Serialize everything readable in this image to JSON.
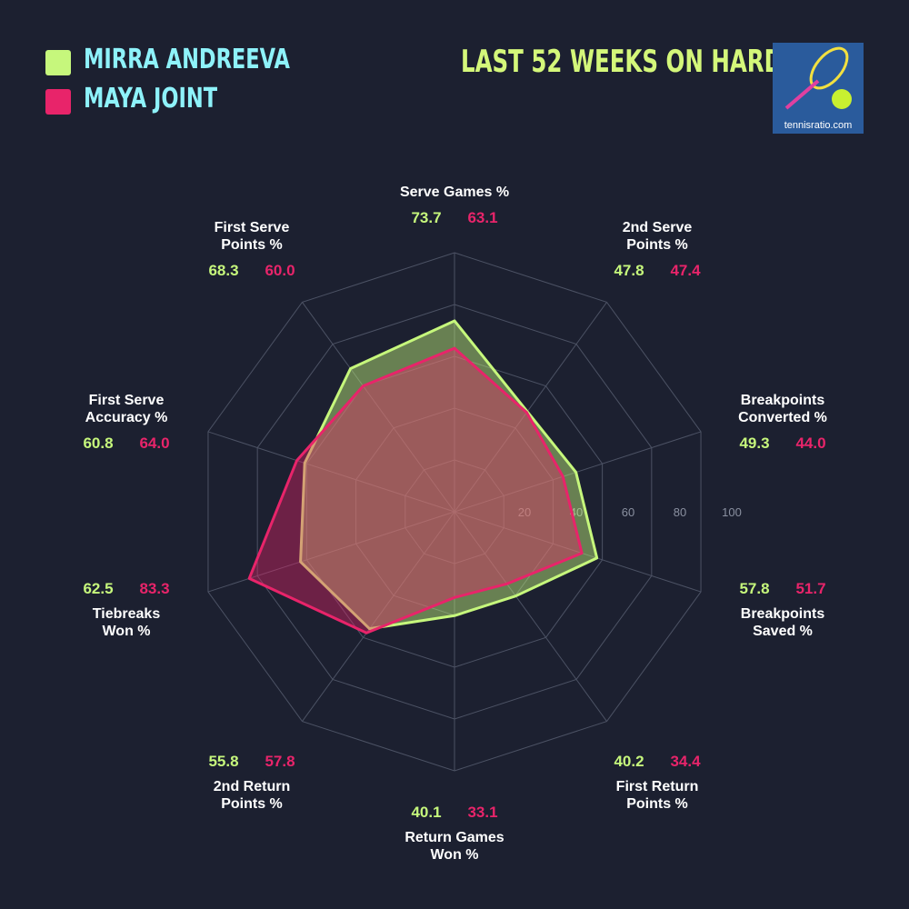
{
  "chart_data": {
    "type": "radar",
    "title": "LAST 52 WEEKS ON HARD",
    "logo_text": "tennisratio.com",
    "categories": [
      "Serve Games %",
      "2nd Serve\nPoints %",
      "Breakpoints\nConverted %",
      "Breakpoints\nSaved %",
      "First Return\nPoints %",
      "Return Games\nWon %",
      "2nd Return\nPoints %",
      "Tiebreaks\nWon %",
      "First Serve\nAccuracy %",
      "First Serve\nPoints %"
    ],
    "series": [
      {
        "name": "MIRRA ANDREEVA",
        "color": "#c6f77c",
        "values": [
          73.7,
          47.8,
          49.3,
          57.8,
          40.2,
          40.1,
          55.8,
          62.5,
          60.8,
          68.3
        ],
        "value_labels": [
          "73.7",
          "47.8",
          "49.3",
          "57.8",
          "40.2",
          "40.1",
          "55.8",
          "62.5",
          "60.8",
          "68.3"
        ]
      },
      {
        "name": "MAYA JOINT",
        "color": "#e8246a",
        "values": [
          63.1,
          47.4,
          44,
          51.7,
          34.4,
          33.1,
          57.8,
          83.3,
          64,
          60
        ],
        "value_labels": [
          "63.1",
          "47.4",
          "44.0",
          "51.7",
          "34.4",
          "33.1",
          "57.8",
          "83.3",
          "64.0",
          "60.0"
        ]
      }
    ],
    "rlim": [
      0,
      100
    ],
    "rticks": [
      20,
      40,
      60,
      80,
      100
    ],
    "grid": true
  }
}
